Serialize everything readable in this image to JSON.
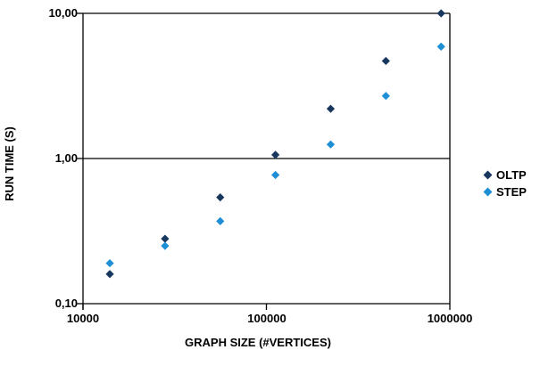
{
  "chart_data": {
    "type": "scatter",
    "title": "",
    "xlabel": "GRAPH SIZE (#VERTICES)",
    "ylabel": "RUN TIME (S)",
    "x_scale": "log",
    "y_scale": "log",
    "xlim": [
      10000,
      1000000
    ],
    "ylim": [
      0.1,
      10
    ],
    "grid": "horizontal decade lines at 0.10, 1.00, 10.00; full plot border",
    "marker": "diamond",
    "x": [
      14000,
      28000,
      56000,
      112000,
      224000,
      448000,
      896000
    ],
    "series": [
      {
        "name": "OLTP",
        "color": "#17375E",
        "values": [
          0.16,
          0.28,
          0.54,
          1.06,
          2.2,
          4.7,
          10.0
        ]
      },
      {
        "name": "STEP",
        "color": "#1E8FD5",
        "values": [
          0.19,
          0.25,
          0.37,
          0.77,
          1.25,
          2.7,
          5.9
        ]
      }
    ],
    "x_ticks": [
      {
        "value": 10000,
        "label": "10000"
      },
      {
        "value": 100000,
        "label": "100000"
      },
      {
        "value": 1000000,
        "label": "1000000"
      }
    ],
    "y_ticks": [
      {
        "value": 10,
        "label": "10,00"
      },
      {
        "value": 1,
        "label": "1,00"
      },
      {
        "value": 0.1,
        "label": "0,10"
      }
    ],
    "legend": {
      "position": "right",
      "entries": [
        "OLTP",
        "STEP"
      ]
    }
  }
}
